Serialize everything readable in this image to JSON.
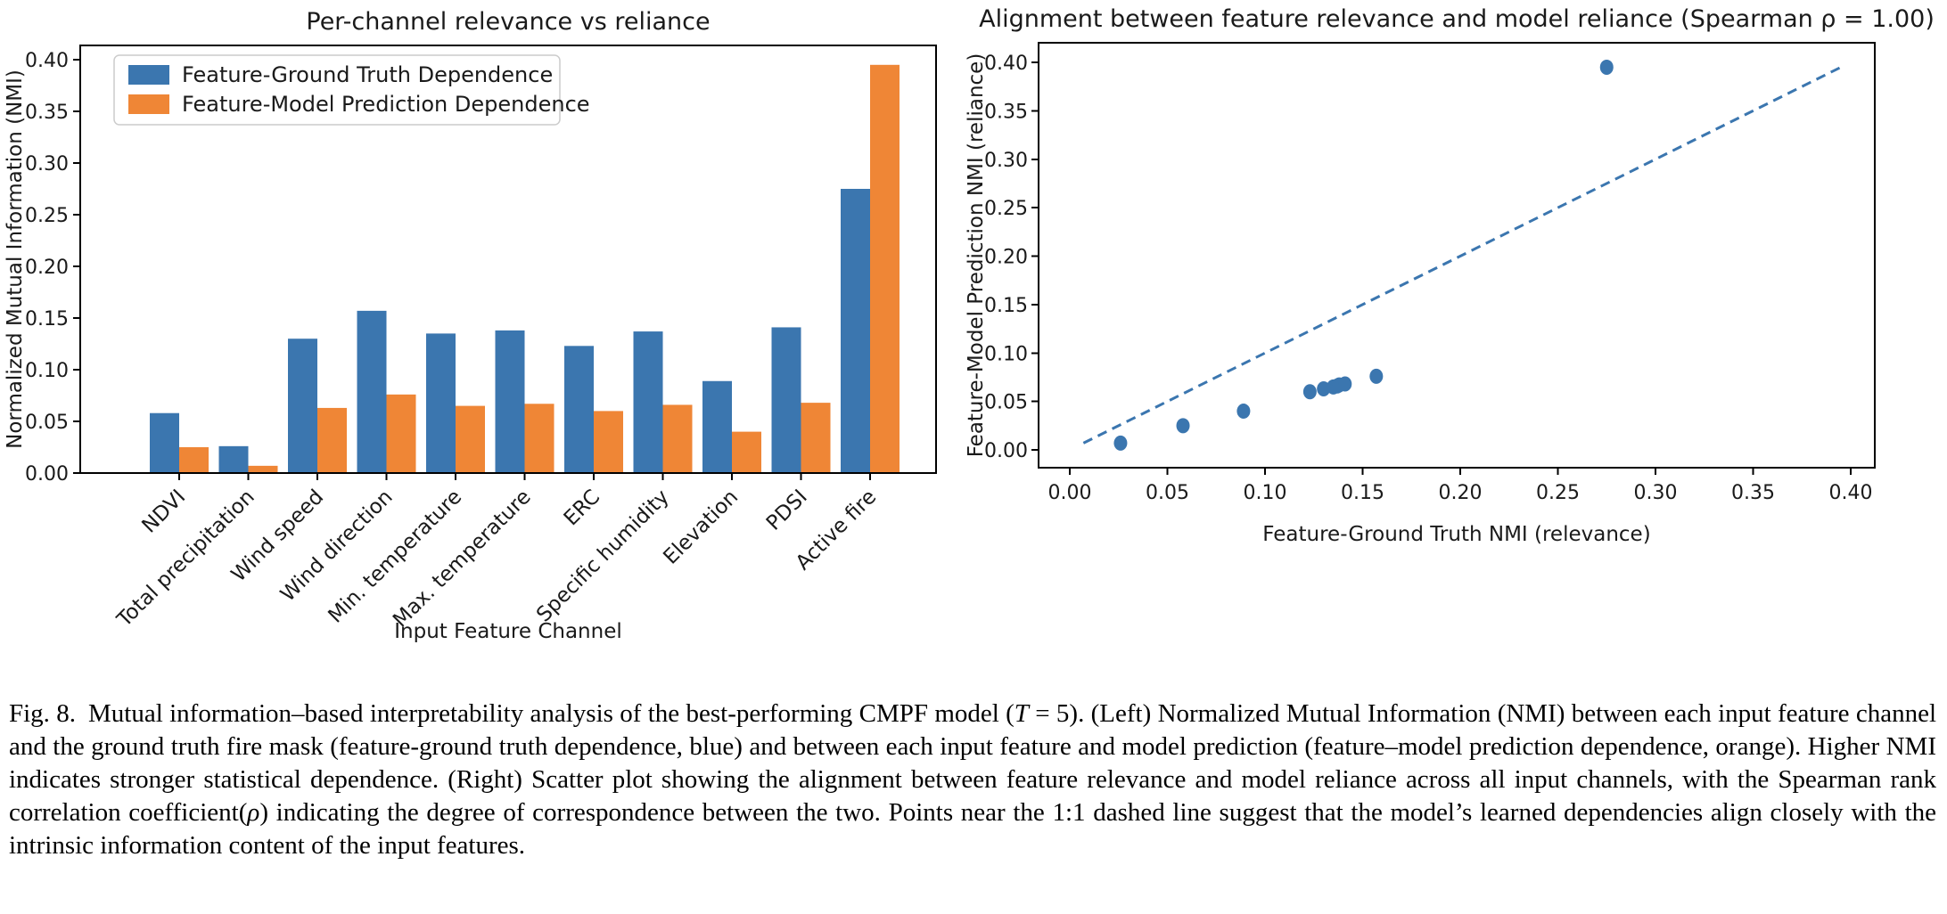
{
  "colors": {
    "blue": "#3B76AF",
    "orange": "#EF8636",
    "axis": "#000000",
    "legend_border": "#cccccc"
  },
  "caption": {
    "fig_label": "Fig. 8.",
    "seg_a": "Mutual information–based interpretability analysis of the best-performing CMPF model (",
    "T_italic": "T",
    "seg_b": " = 5). (Left) Normalized Mutual Information (NMI) between each input feature channel and the ground truth fire mask (feature-ground truth dependence, blue) and between each input feature and model prediction (feature–model prediction dependence, orange). Higher NMI indicates stronger statistical dependence. (Right) Scatter plot showing the alignment between feature relevance and model reliance across all input channels, with the Spearman rank correlation coefficient(",
    "rho_italic": "ρ",
    "seg_c": ") indicating the degree of correspondence between the two. Points near the 1:1 dashed line suggest that the model’s learned dependencies align closely with the intrinsic information content of the input features."
  },
  "chart_data": [
    {
      "type": "bar",
      "title": "Per-channel relevance vs reliance",
      "xlabel": "Input Feature Channel",
      "ylabel": "Normalized Mutual Information (NMI)",
      "ylim": [
        0,
        0.414
      ],
      "yticks": [
        0.0,
        0.05,
        0.1,
        0.15,
        0.2,
        0.25,
        0.3,
        0.35,
        0.4
      ],
      "grid": false,
      "legend_position": "upper left",
      "categories": [
        "NDVI",
        "Total precipitation",
        "Wind speed",
        "Wind direction",
        "Min. temperature",
        "Max. temperature",
        "ERC",
        "Specific humidity",
        "Elevation",
        "PDSI",
        "Active fire"
      ],
      "series": [
        {
          "name": "Feature-Ground Truth Dependence",
          "color": "#3B76AF",
          "values": [
            0.058,
            0.026,
            0.13,
            0.157,
            0.135,
            0.138,
            0.123,
            0.137,
            0.089,
            0.141,
            0.275
          ]
        },
        {
          "name": "Feature-Model Prediction Dependence",
          "color": "#EF8636",
          "values": [
            0.025,
            0.007,
            0.063,
            0.076,
            0.065,
            0.067,
            0.06,
            0.066,
            0.04,
            0.068,
            0.395
          ]
        }
      ]
    },
    {
      "type": "scatter",
      "title": "Alignment between feature relevance and model reliance (Spearman ρ = 1.00)",
      "xlabel": "Feature-Ground Truth NMI (relevance)",
      "ylabel": "Feature-Model Prediction NMI (reliance)",
      "xlim": [
        -0.017,
        0.413
      ],
      "ylim": [
        -0.018,
        0.42
      ],
      "xticks": [
        0.0,
        0.05,
        0.1,
        0.15,
        0.2,
        0.25,
        0.3,
        0.35,
        0.4
      ],
      "yticks": [
        0.0,
        0.05,
        0.1,
        0.15,
        0.2,
        0.25,
        0.3,
        0.35,
        0.4
      ],
      "grid": false,
      "point_color": "#3B76AF",
      "identity_line": {
        "from": 0.007,
        "to": 0.396,
        "style": "dashed",
        "color": "#3B76AF"
      },
      "points": [
        [
          0.026,
          0.007
        ],
        [
          0.058,
          0.025
        ],
        [
          0.089,
          0.04
        ],
        [
          0.123,
          0.06
        ],
        [
          0.13,
          0.063
        ],
        [
          0.135,
          0.065
        ],
        [
          0.137,
          0.066
        ],
        [
          0.138,
          0.067
        ],
        [
          0.141,
          0.068
        ],
        [
          0.157,
          0.076
        ],
        [
          0.275,
          0.395
        ]
      ]
    }
  ]
}
